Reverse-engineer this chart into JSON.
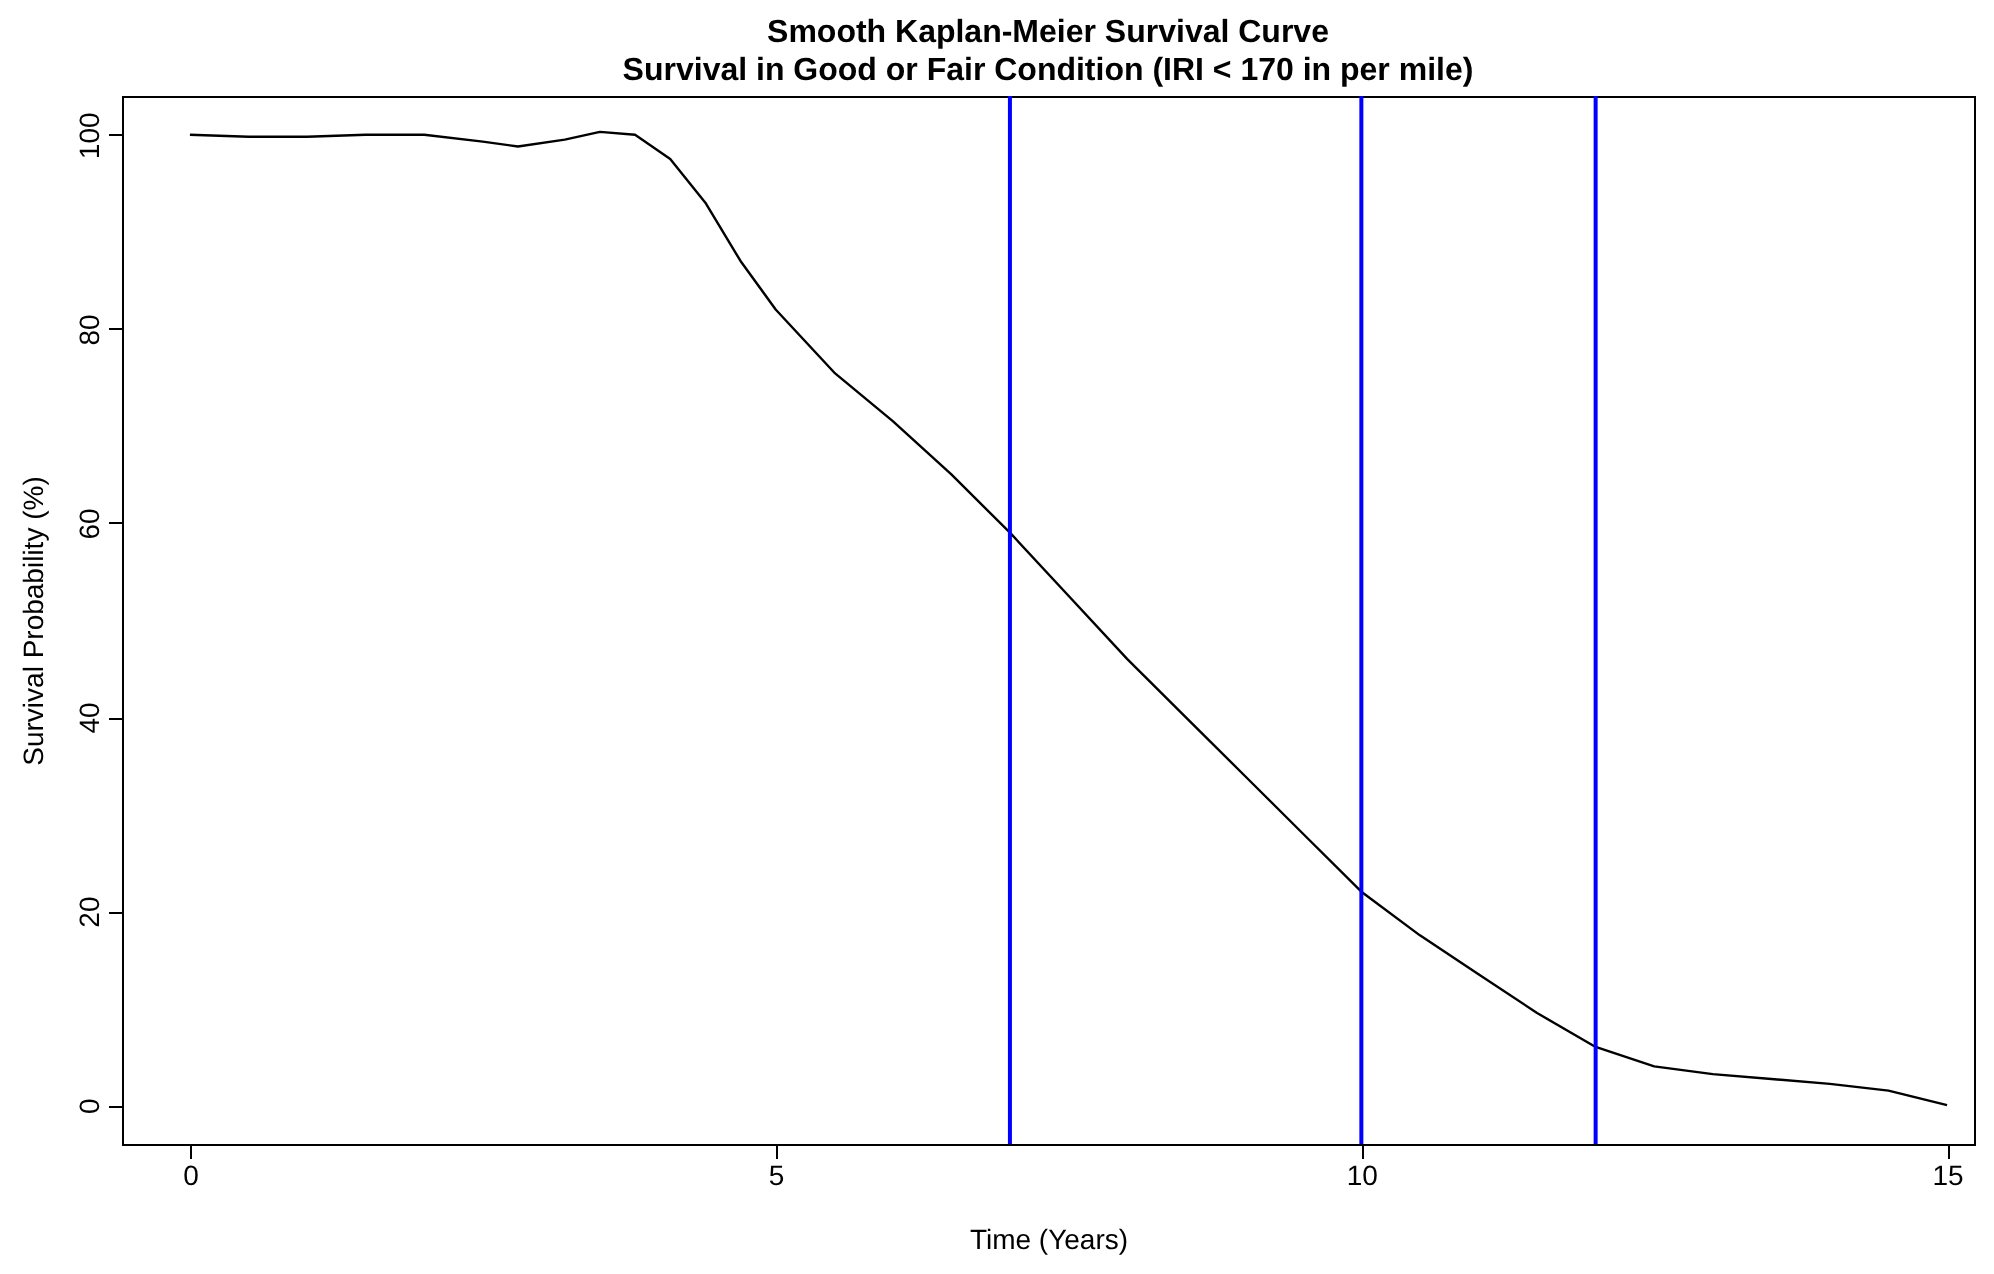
{
  "chart_data": {
    "type": "line",
    "title": "Smooth Kaplan-Meier Survival Curve",
    "subtitle": "Survival in Good or Fair Condition (IRI < 170 in per mile)",
    "xlabel": "Time (Years)",
    "ylabel": "Survival Probability (%)",
    "x": [
      0,
      0.5,
      1,
      1.5,
      2,
      2.5,
      2.8,
      3.2,
      3.5,
      3.8,
      4.1,
      4.4,
      4.7,
      5,
      5.5,
      6,
      6.5,
      7,
      7.5,
      8,
      8.5,
      9,
      9.5,
      10,
      10.5,
      11,
      11.5,
      12,
      12.5,
      13,
      13.5,
      14,
      14.5,
      15
    ],
    "series": [
      {
        "color": "#000000",
        "values": [
          100,
          99.8,
          99.8,
          100,
          100,
          99.3,
          98.8,
          99.5,
          100.3,
          100,
          97.5,
          93,
          87,
          82,
          75.5,
          70.5,
          65,
          59,
          52.5,
          46,
          40,
          34,
          28,
          22,
          17.5,
          13.5,
          9.5,
          6,
          4,
          3.2,
          2.7,
          2.2,
          1.5,
          0
        ]
      }
    ],
    "xlim": [
      -0.58,
      15.23
    ],
    "ylim": [
      -4,
      104
    ],
    "xticks": [
      0,
      5,
      10,
      15
    ],
    "yticks": [
      0,
      20,
      40,
      60,
      80,
      100
    ],
    "ref_lines": [
      {
        "axis": "x",
        "value": 7,
        "color": "#0000ff"
      },
      {
        "axis": "x",
        "value": 10,
        "color": "#0000ff"
      },
      {
        "axis": "x",
        "value": 12,
        "color": "#0000ff"
      }
    ],
    "grid": false,
    "marker": "none",
    "line_style": "solid"
  }
}
